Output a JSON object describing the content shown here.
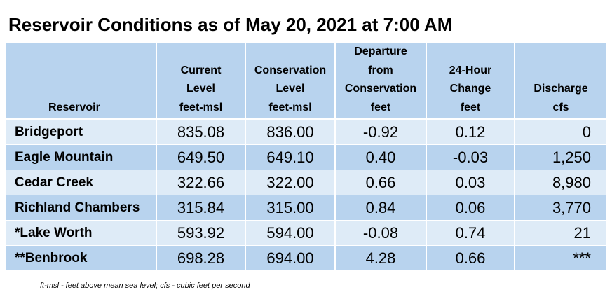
{
  "title": "Reservoir Conditions as of May 20, 2021 at 7:00 AM",
  "table": {
    "headers": {
      "reservoir": [
        "Reservoir"
      ],
      "current": [
        "Current",
        "Level",
        "feet-msl"
      ],
      "conservation": [
        "Conservation",
        "Level",
        "feet-msl"
      ],
      "departure": [
        "Departure",
        "from",
        "Conservation",
        "feet"
      ],
      "change": [
        "24-Hour",
        "Change",
        "feet"
      ],
      "discharge": [
        "Discharge",
        "cfs"
      ]
    },
    "rows": [
      {
        "name": "Bridgeport",
        "current": "835.08",
        "conservation": "836.00",
        "departure": "-0.92",
        "change": "0.12",
        "discharge": "0"
      },
      {
        "name": "Eagle Mountain",
        "current": "649.50",
        "conservation": "649.10",
        "departure": "0.40",
        "change": "-0.03",
        "discharge": "1,250"
      },
      {
        "name": "Cedar Creek",
        "current": "322.66",
        "conservation": "322.00",
        "departure": "0.66",
        "change": "0.03",
        "discharge": "8,980"
      },
      {
        "name": "Richland Chambers",
        "current": "315.84",
        "conservation": "315.00",
        "departure": "0.84",
        "change": "0.06",
        "discharge": "3,770"
      },
      {
        "name": "*Lake Worth",
        "current": "593.92",
        "conservation": "594.00",
        "departure": "-0.08",
        "change": "0.74",
        "discharge": "21"
      },
      {
        "name": "**Benbrook",
        "current": "698.28",
        "conservation": "694.00",
        "departure": "4.28",
        "change": "0.66",
        "discharge": "***"
      }
    ]
  },
  "footnote": "ft-msl - feet above mean sea level; cfs - cubic feet per second",
  "colors": {
    "header_bg": "#b8d3ee",
    "row_light": "#deebf7",
    "row_dark": "#b8d3ee"
  }
}
